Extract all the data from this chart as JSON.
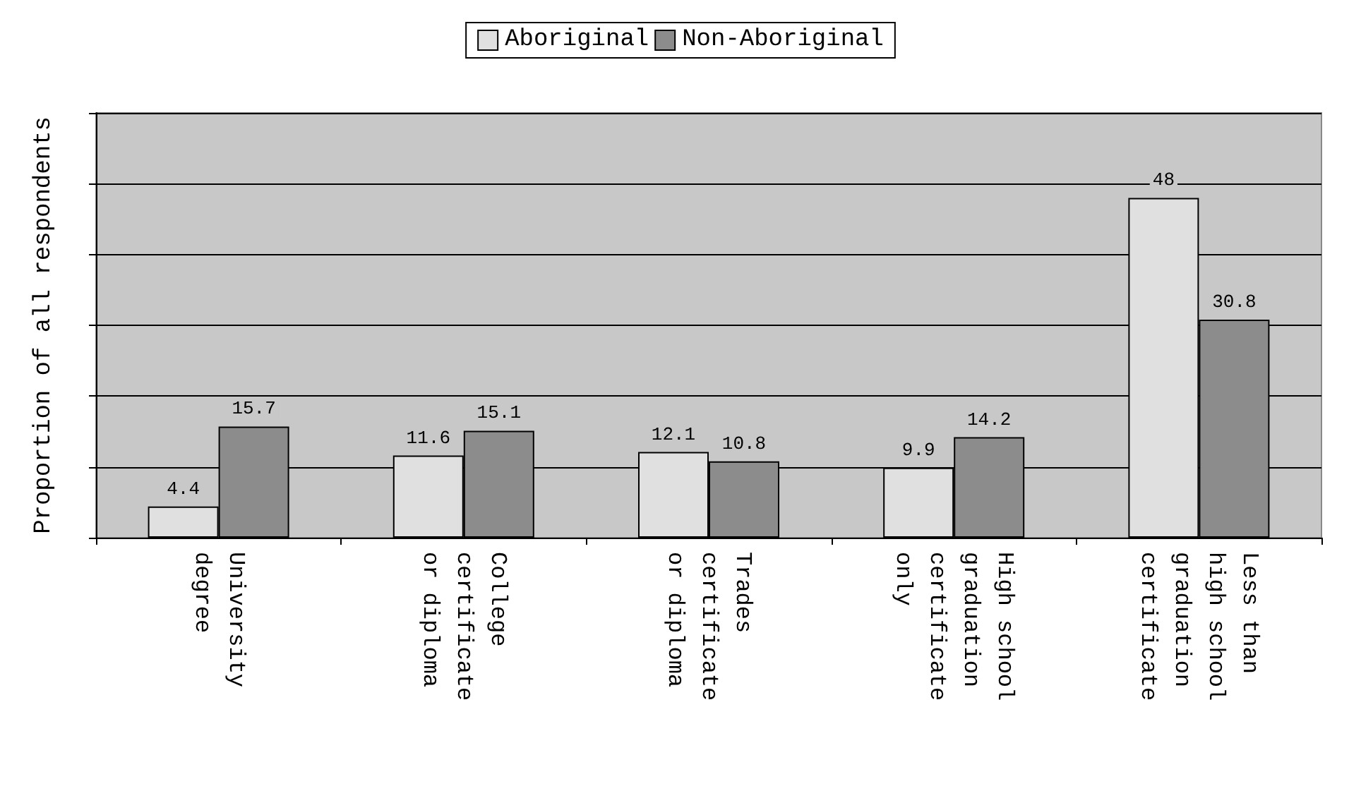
{
  "chart_data": {
    "type": "bar",
    "ylabel": "Proportion of all respondents",
    "categories": [
      "University degree",
      "College certificate or diploma",
      "Trades certificate or diploma",
      "High school graduation certificate only",
      "Less than high school graduation certificate"
    ],
    "series": [
      {
        "name": "Aboriginal",
        "color": "#e0e0e0",
        "values": [
          4.4,
          11.6,
          12.1,
          9.9,
          48
        ]
      },
      {
        "name": "Non-Aboriginal",
        "color": "#8c8c8c",
        "values": [
          15.7,
          15.1,
          10.8,
          14.2,
          30.8
        ]
      }
    ],
    "ylim": [
      0,
      60
    ],
    "yticks": [
      {
        "value": 0,
        "label": null
      },
      {
        "value": 10,
        "label": null
      },
      {
        "value": 20,
        "label": null
      },
      {
        "value": 30,
        "label": null
      },
      {
        "value": 40,
        "label": null
      },
      {
        "value": 50,
        "label": null
      },
      {
        "value": 60,
        "label": null
      }
    ],
    "tick_labels": "x",
    "grid": "y",
    "legend": "top",
    "data_labels": true
  }
}
